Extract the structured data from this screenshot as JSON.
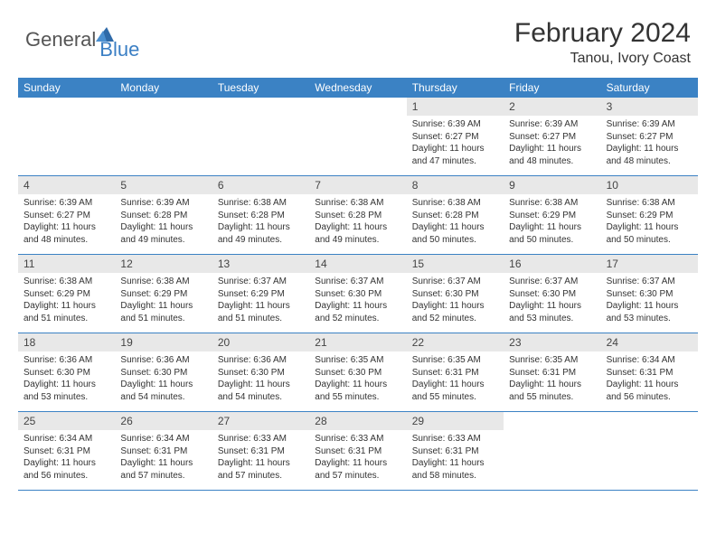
{
  "logo": {
    "text_general": "General",
    "text_blue": "Blue"
  },
  "header": {
    "month_title": "February 2024",
    "location": "Tanou, Ivory Coast"
  },
  "colors": {
    "header_bar": "#3b82c4",
    "daynum_bg": "#e8e8e8",
    "text": "#333333",
    "logo_gray": "#555555",
    "logo_blue": "#3b7fc4"
  },
  "weekdays": [
    "Sunday",
    "Monday",
    "Tuesday",
    "Wednesday",
    "Thursday",
    "Friday",
    "Saturday"
  ],
  "weeks": [
    [
      null,
      null,
      null,
      null,
      {
        "n": "1",
        "sunrise": "6:39 AM",
        "sunset": "6:27 PM",
        "daylight": "11 hours and 47 minutes."
      },
      {
        "n": "2",
        "sunrise": "6:39 AM",
        "sunset": "6:27 PM",
        "daylight": "11 hours and 48 minutes."
      },
      {
        "n": "3",
        "sunrise": "6:39 AM",
        "sunset": "6:27 PM",
        "daylight": "11 hours and 48 minutes."
      }
    ],
    [
      {
        "n": "4",
        "sunrise": "6:39 AM",
        "sunset": "6:27 PM",
        "daylight": "11 hours and 48 minutes."
      },
      {
        "n": "5",
        "sunrise": "6:39 AM",
        "sunset": "6:28 PM",
        "daylight": "11 hours and 49 minutes."
      },
      {
        "n": "6",
        "sunrise": "6:38 AM",
        "sunset": "6:28 PM",
        "daylight": "11 hours and 49 minutes."
      },
      {
        "n": "7",
        "sunrise": "6:38 AM",
        "sunset": "6:28 PM",
        "daylight": "11 hours and 49 minutes."
      },
      {
        "n": "8",
        "sunrise": "6:38 AM",
        "sunset": "6:28 PM",
        "daylight": "11 hours and 50 minutes."
      },
      {
        "n": "9",
        "sunrise": "6:38 AM",
        "sunset": "6:29 PM",
        "daylight": "11 hours and 50 minutes."
      },
      {
        "n": "10",
        "sunrise": "6:38 AM",
        "sunset": "6:29 PM",
        "daylight": "11 hours and 50 minutes."
      }
    ],
    [
      {
        "n": "11",
        "sunrise": "6:38 AM",
        "sunset": "6:29 PM",
        "daylight": "11 hours and 51 minutes."
      },
      {
        "n": "12",
        "sunrise": "6:38 AM",
        "sunset": "6:29 PM",
        "daylight": "11 hours and 51 minutes."
      },
      {
        "n": "13",
        "sunrise": "6:37 AM",
        "sunset": "6:29 PM",
        "daylight": "11 hours and 51 minutes."
      },
      {
        "n": "14",
        "sunrise": "6:37 AM",
        "sunset": "6:30 PM",
        "daylight": "11 hours and 52 minutes."
      },
      {
        "n": "15",
        "sunrise": "6:37 AM",
        "sunset": "6:30 PM",
        "daylight": "11 hours and 52 minutes."
      },
      {
        "n": "16",
        "sunrise": "6:37 AM",
        "sunset": "6:30 PM",
        "daylight": "11 hours and 53 minutes."
      },
      {
        "n": "17",
        "sunrise": "6:37 AM",
        "sunset": "6:30 PM",
        "daylight": "11 hours and 53 minutes."
      }
    ],
    [
      {
        "n": "18",
        "sunrise": "6:36 AM",
        "sunset": "6:30 PM",
        "daylight": "11 hours and 53 minutes."
      },
      {
        "n": "19",
        "sunrise": "6:36 AM",
        "sunset": "6:30 PM",
        "daylight": "11 hours and 54 minutes."
      },
      {
        "n": "20",
        "sunrise": "6:36 AM",
        "sunset": "6:30 PM",
        "daylight": "11 hours and 54 minutes."
      },
      {
        "n": "21",
        "sunrise": "6:35 AM",
        "sunset": "6:30 PM",
        "daylight": "11 hours and 55 minutes."
      },
      {
        "n": "22",
        "sunrise": "6:35 AM",
        "sunset": "6:31 PM",
        "daylight": "11 hours and 55 minutes."
      },
      {
        "n": "23",
        "sunrise": "6:35 AM",
        "sunset": "6:31 PM",
        "daylight": "11 hours and 55 minutes."
      },
      {
        "n": "24",
        "sunrise": "6:34 AM",
        "sunset": "6:31 PM",
        "daylight": "11 hours and 56 minutes."
      }
    ],
    [
      {
        "n": "25",
        "sunrise": "6:34 AM",
        "sunset": "6:31 PM",
        "daylight": "11 hours and 56 minutes."
      },
      {
        "n": "26",
        "sunrise": "6:34 AM",
        "sunset": "6:31 PM",
        "daylight": "11 hours and 57 minutes."
      },
      {
        "n": "27",
        "sunrise": "6:33 AM",
        "sunset": "6:31 PM",
        "daylight": "11 hours and 57 minutes."
      },
      {
        "n": "28",
        "sunrise": "6:33 AM",
        "sunset": "6:31 PM",
        "daylight": "11 hours and 57 minutes."
      },
      {
        "n": "29",
        "sunrise": "6:33 AM",
        "sunset": "6:31 PM",
        "daylight": "11 hours and 58 minutes."
      },
      null,
      null
    ]
  ],
  "labels": {
    "sunrise_prefix": "Sunrise: ",
    "sunset_prefix": "Sunset: ",
    "daylight_prefix": "Daylight: "
  }
}
